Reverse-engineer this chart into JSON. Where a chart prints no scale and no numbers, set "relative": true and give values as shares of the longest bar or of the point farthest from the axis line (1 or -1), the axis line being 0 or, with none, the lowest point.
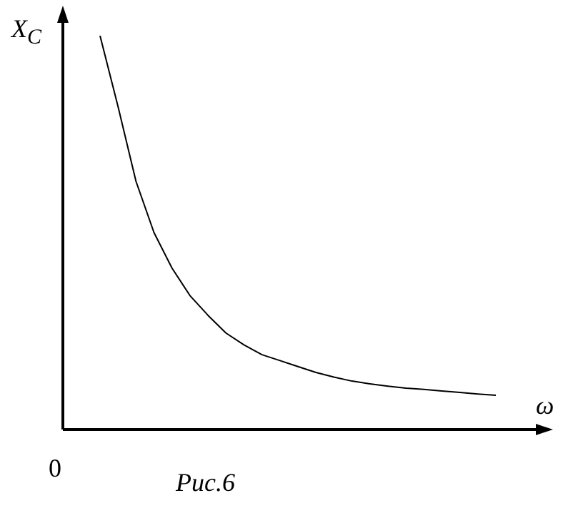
{
  "chart_data": {
    "type": "line",
    "relative": true,
    "xlabel": "ω",
    "ylabel": "X$_{C}$",
    "grid": false,
    "legend": false,
    "marker": "none",
    "line_style": "solid",
    "annotations": [
      "0",
      "Рис.6"
    ],
    "categories": [
      null,
      null,
      null,
      null,
      null,
      null,
      null,
      null,
      null,
      null,
      null,
      null,
      null,
      null,
      null,
      null,
      null,
      null,
      null,
      null,
      null,
      null,
      null
    ],
    "series": [
      {
        "color": "#000000",
        "values": [
          1,
          0.82,
          0.63,
          0.5,
          0.41,
          0.34,
          0.29,
          0.245,
          0.215,
          0.19,
          0.175,
          0.16,
          0.145,
          0.133,
          0.123,
          0.116,
          0.11,
          0.105,
          0.102,
          0.098,
          0.094,
          0.09,
          0.087
        ]
      }
    ]
  }
}
